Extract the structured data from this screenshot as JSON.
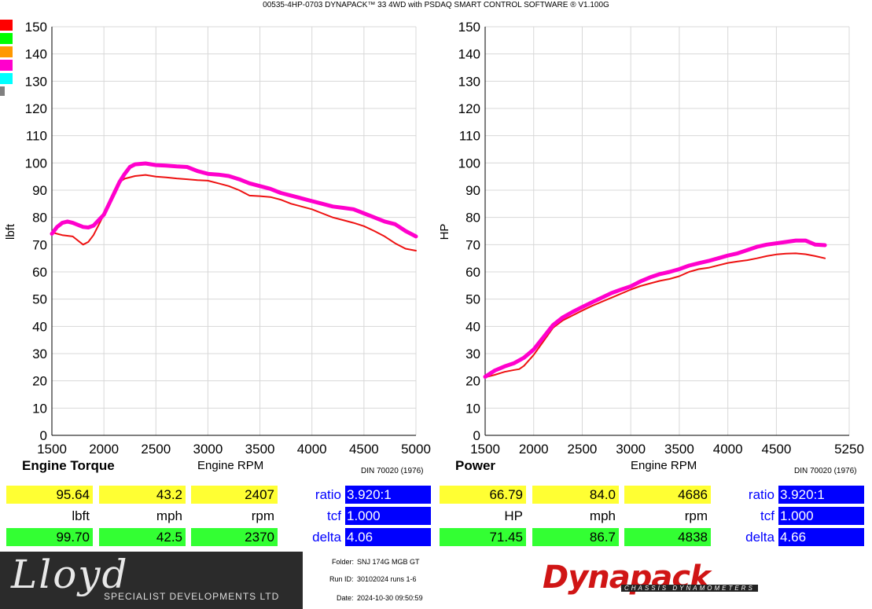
{
  "header": "00535-4HP-0703 DYNAPACK™ 33 4WD with PSDAQ SMART CONTROL SOFTWARE ® V1.100G",
  "legend_colors": [
    "#ff0000",
    "#00ff00",
    "#ff9900",
    "#ff00cc",
    "#00ffff",
    "#808080"
  ],
  "chart_data": [
    {
      "type": "line",
      "title": "Engine Torque",
      "xlabel": "Engine RPM",
      "ylabel": "lbft",
      "xlim": [
        1500,
        5000
      ],
      "ylim": [
        0,
        150
      ],
      "xticks": [
        1500,
        2000,
        2500,
        3000,
        3500,
        4000,
        4500,
        5000
      ],
      "yticks": [
        0,
        10,
        20,
        30,
        40,
        50,
        60,
        70,
        80,
        90,
        100,
        110,
        120,
        130,
        140,
        150
      ],
      "grid": true,
      "series": [
        {
          "color": "#ee1111",
          "x": [
            1500,
            1550,
            1600,
            1700,
            1750,
            1800,
            1850,
            1900,
            2000,
            2100,
            2150,
            2200,
            2300,
            2400,
            2500,
            2600,
            2700,
            2800,
            2900,
            3000,
            3100,
            3200,
            3300,
            3400,
            3500,
            3600,
            3700,
            3800,
            3900,
            4000,
            4100,
            4200,
            4300,
            4400,
            4500,
            4600,
            4700,
            4800,
            4900,
            5000
          ],
          "y": [
            74.5,
            74,
            73.5,
            73,
            71.5,
            70,
            71,
            73.5,
            81,
            90,
            93,
            94.2,
            95.2,
            95.6,
            95,
            94.7,
            94.3,
            94,
            93.7,
            93.5,
            92.5,
            91.5,
            90,
            88,
            87.8,
            87.5,
            86.5,
            85,
            84,
            83,
            81.5,
            80,
            79,
            78,
            76.8,
            75,
            73,
            70.5,
            68.5,
            67.8
          ]
        },
        {
          "color": "#ff00cc",
          "x": [
            1500,
            1550,
            1600,
            1650,
            1700,
            1800,
            1850,
            1900,
            2000,
            2100,
            2150,
            2200,
            2250,
            2300,
            2400,
            2500,
            2600,
            2700,
            2800,
            2900,
            3000,
            3100,
            3200,
            3300,
            3400,
            3500,
            3600,
            3700,
            3800,
            3900,
            4000,
            4100,
            4200,
            4300,
            4400,
            4500,
            4600,
            4700,
            4800,
            4900,
            5000
          ],
          "y": [
            74,
            76.5,
            78,
            78.5,
            78,
            76.5,
            76.3,
            77,
            81,
            89,
            93,
            96,
            98.5,
            99.5,
            99.8,
            99.2,
            99,
            98.7,
            98.5,
            97,
            96,
            95.7,
            95.2,
            94,
            92.5,
            91.5,
            90.5,
            89,
            88,
            87,
            86,
            85,
            84,
            83.5,
            83,
            81.5,
            80,
            78.5,
            77.5,
            75,
            73
          ]
        }
      ],
      "readout": {
        "yellow": [
          "95.64",
          "43.2",
          "2407"
        ],
        "units": [
          "lbft",
          "mph",
          "rpm"
        ],
        "green": [
          "99.70",
          "42.5",
          "2370"
        ],
        "labels": [
          "ratio",
          "tcf",
          "delta"
        ],
        "values": [
          "3.920:1",
          "1.000",
          "4.06"
        ]
      },
      "din": "DIN 70020 (1976)"
    },
    {
      "type": "line",
      "title": "Power",
      "xlabel": "Engine RPM",
      "ylabel": "HP",
      "xlim": [
        1500,
        5250
      ],
      "ylim": [
        0,
        150
      ],
      "xticks": [
        1500,
        2000,
        2500,
        3000,
        3500,
        4000,
        4500,
        5250
      ],
      "yticks": [
        0,
        10,
        20,
        30,
        40,
        50,
        60,
        70,
        80,
        90,
        100,
        110,
        120,
        130,
        140,
        150
      ],
      "grid": true,
      "series": [
        {
          "color": "#ee1111",
          "x": [
            1500,
            1600,
            1700,
            1800,
            1850,
            1900,
            2000,
            2100,
            2200,
            2300,
            2400,
            2500,
            2600,
            2700,
            2800,
            2900,
            3000,
            3100,
            3200,
            3300,
            3400,
            3500,
            3600,
            3700,
            3800,
            3900,
            4000,
            4100,
            4200,
            4300,
            4400,
            4500,
            4600,
            4700,
            4800,
            4900,
            5000
          ],
          "y": [
            21.3,
            22.2,
            23.3,
            24,
            24.3,
            25.5,
            29.5,
            34.5,
            39.5,
            42.2,
            44,
            45.8,
            47.5,
            49,
            50.5,
            52,
            53.5,
            54.8,
            55.8,
            56.7,
            57.4,
            58.4,
            60,
            61,
            61.5,
            62.4,
            63.3,
            63.8,
            64.3,
            65,
            65.8,
            66.4,
            66.7,
            66.8,
            66.5,
            65.8,
            65
          ]
        },
        {
          "color": "#ff00cc",
          "x": [
            1500,
            1600,
            1700,
            1800,
            1900,
            2000,
            2100,
            2200,
            2300,
            2400,
            2500,
            2600,
            2700,
            2800,
            2900,
            3000,
            3100,
            3200,
            3300,
            3400,
            3500,
            3600,
            3700,
            3800,
            3900,
            4000,
            4100,
            4200,
            4300,
            4400,
            4500,
            4600,
            4700,
            4800,
            4900,
            5000
          ],
          "y": [
            21.5,
            23.8,
            25.3,
            26.5,
            28.5,
            31.5,
            36,
            40.5,
            43.3,
            45.3,
            47.1,
            48.8,
            50.5,
            52.2,
            53.5,
            54.7,
            56.5,
            58,
            59.2,
            60,
            61,
            62.3,
            63.2,
            64,
            65,
            66,
            66.8,
            68,
            69.2,
            70,
            70.5,
            71,
            71.5,
            71.5,
            70,
            69.8
          ]
        }
      ],
      "readout": {
        "yellow": [
          "66.79",
          "84.0",
          "4686"
        ],
        "units": [
          "HP",
          "mph",
          "rpm"
        ],
        "green": [
          "71.45",
          "86.7",
          "4838"
        ],
        "labels": [
          "ratio",
          "tcf",
          "delta"
        ],
        "values": [
          "3.920:1",
          "1.000",
          "4.66"
        ]
      },
      "din": "DIN 70020 (1976)"
    }
  ],
  "footer": {
    "logo_main": "Lloyd",
    "logo_sub": "SPECIALIST DEVELOPMENTS LTD",
    "folder_label": "Folder:",
    "folder_value": "SNJ 174G MGB GT",
    "runid_label": "Run ID:",
    "runid_value": "30102024 runs 1-6",
    "date_label": "Date:",
    "date_value": "2024-10-30 09:50:59",
    "brand": "Dynapack",
    "brand_sub": "CHASSIS DYNAMOMETERS"
  }
}
